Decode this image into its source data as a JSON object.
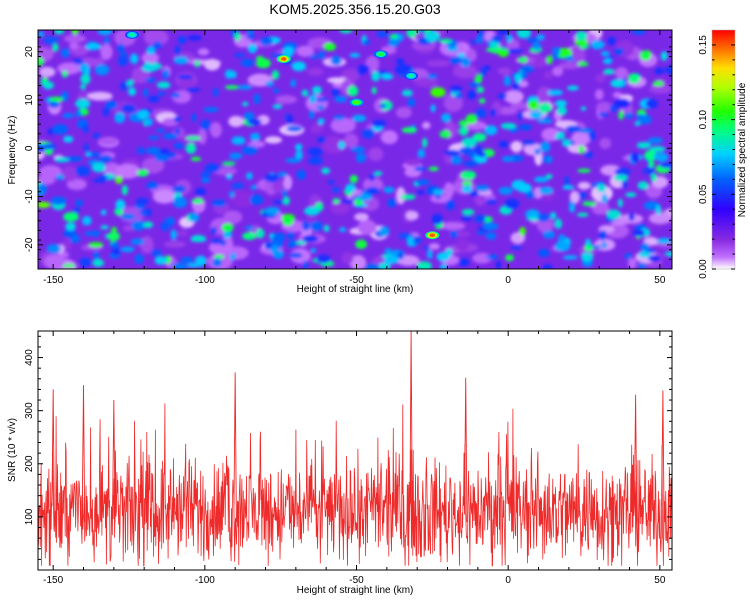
{
  "title": "KOM5.2025.356.15.20.G03",
  "colors": {
    "snr_line": "#ee2a2a",
    "frame": "#000000"
  },
  "chart_data": [
    {
      "type": "heatmap",
      "xlabel": "Height of straight line (km)",
      "ylabel": "Frequency (Hz)",
      "xlim": [
        -155,
        54
      ],
      "ylim": [
        -25,
        24.5
      ],
      "x_ticks": [
        -150,
        -100,
        -50,
        0,
        50
      ],
      "y_ticks": [
        -20,
        -10,
        0,
        10,
        20
      ],
      "colorbar": {
        "label": "Normalized spectral amplitude",
        "range": [
          0,
          0.16
        ],
        "ticks": [
          0.0,
          0.05,
          0.1,
          0.15
        ],
        "tick_labels": [
          "0.00",
          "0.05",
          "0.10",
          "0.15"
        ],
        "colormap": "rainbow (violet-blue-cyan-green-yellow-red)"
      },
      "peaks": [
        {
          "x": -74,
          "y": 18.5,
          "value": 0.15
        },
        {
          "x": -25,
          "y": -18,
          "value": 0.15
        },
        {
          "x": -50,
          "y": 9.5,
          "value": 0.11
        },
        {
          "x": -42,
          "y": 19.5,
          "value": 0.1
        },
        {
          "x": -32,
          "y": 15,
          "value": 0.09
        },
        {
          "x": -124,
          "y": 23.5,
          "value": 0.09
        }
      ]
    },
    {
      "type": "line",
      "xlabel": "Height of straight line (km)",
      "ylabel": "SNR (10 * v/v)",
      "xlim": [
        -155,
        54
      ],
      "ylim": [
        0,
        450
      ],
      "x_ticks": [
        -150,
        -100,
        -50,
        0,
        50
      ],
      "y_ticks": [
        100,
        200,
        300,
        400
      ],
      "series": [
        {
          "baseline_mean": 110,
          "notable_peaks": [
            {
              "x": -32,
              "y": 450
            },
            {
              "x": -90,
              "y": 372
            },
            {
              "x": -14,
              "y": 362
            },
            {
              "x": -140,
              "y": 348
            },
            {
              "x": -150,
              "y": 340
            },
            {
              "x": 51,
              "y": 338
            },
            {
              "x": 42,
              "y": 330
            },
            {
              "x": -130,
              "y": 320
            }
          ]
        }
      ]
    }
  ]
}
